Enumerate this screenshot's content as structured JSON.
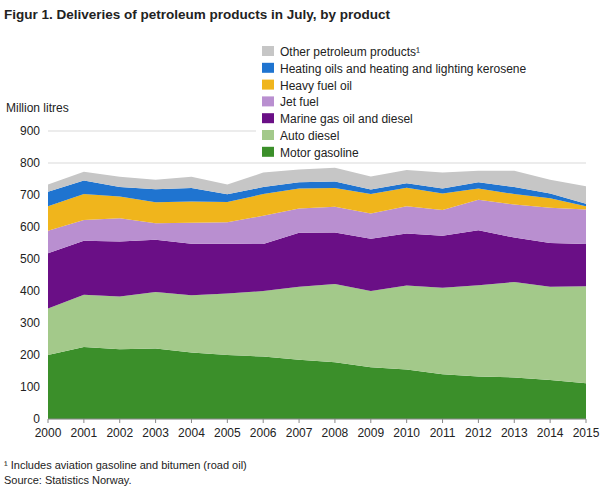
{
  "chart_data": {
    "type": "area",
    "stacked": true,
    "title": "Figur 1. Deliveries of petroleum products in July, by product",
    "y_label": "Million litres",
    "footnote": "¹ Includes aviation gasoline and bitumen (road oil)",
    "source": "Source: Statistics Norway.",
    "x": [
      2000,
      2001,
      2002,
      2003,
      2004,
      2005,
      2006,
      2007,
      2008,
      2009,
      2010,
      2011,
      2012,
      2013,
      2014,
      2015
    ],
    "xlim": [
      2000,
      2015
    ],
    "xticks": [
      2000,
      2001,
      2002,
      2003,
      2004,
      2005,
      2006,
      2007,
      2008,
      2009,
      2010,
      2011,
      2012,
      2013,
      2014,
      2015
    ],
    "ylim": [
      0,
      900
    ],
    "yticks": [
      0,
      100,
      200,
      300,
      400,
      500,
      600,
      700,
      800,
      900
    ],
    "grid": true,
    "legend": "top-right",
    "series": [
      {
        "name": "Motor gasoline",
        "color": "#3b8f2a",
        "values": [
          200,
          225,
          218,
          220,
          208,
          200,
          195,
          185,
          177,
          162,
          155,
          140,
          133,
          130,
          122,
          112
        ]
      },
      {
        "name": "Auto diesel",
        "color": "#a3c98a",
        "values": [
          145,
          163,
          165,
          177,
          179,
          192,
          205,
          228,
          245,
          238,
          262,
          270,
          285,
          298,
          291,
          303
        ]
      },
      {
        "name": "Marine gas oil and diesel",
        "color": "#6a0f86",
        "values": [
          173,
          169,
          172,
          163,
          161,
          156,
          147,
          169,
          161,
          163,
          163,
          163,
          172,
          139,
          137,
          132
        ]
      },
      {
        "name": "Jet fuel",
        "color": "#b98fd0",
        "values": [
          70,
          65,
          72,
          52,
          65,
          67,
          88,
          76,
          80,
          79,
          85,
          80,
          95,
          103,
          110,
          108
        ]
      },
      {
        "name": "Heavy fuel oil",
        "color": "#f0b51c",
        "values": [
          77,
          81,
          68,
          65,
          67,
          63,
          68,
          62,
          59,
          61,
          58,
          52,
          35,
          33,
          30,
          10
        ]
      },
      {
        "name": "Heating oils and heating and lighting kerosene",
        "color": "#1f74d0",
        "values": [
          45,
          42,
          30,
          41,
          42,
          24,
          22,
          20,
          20,
          14,
          14,
          15,
          20,
          22,
          15,
          8
        ]
      },
      {
        "name": "Other petroleum products¹",
        "color": "#c6c6c6",
        "values": [
          23,
          28,
          32,
          30,
          35,
          31,
          45,
          40,
          43,
          41,
          41,
          50,
          36,
          51,
          43,
          54
        ]
      }
    ]
  }
}
